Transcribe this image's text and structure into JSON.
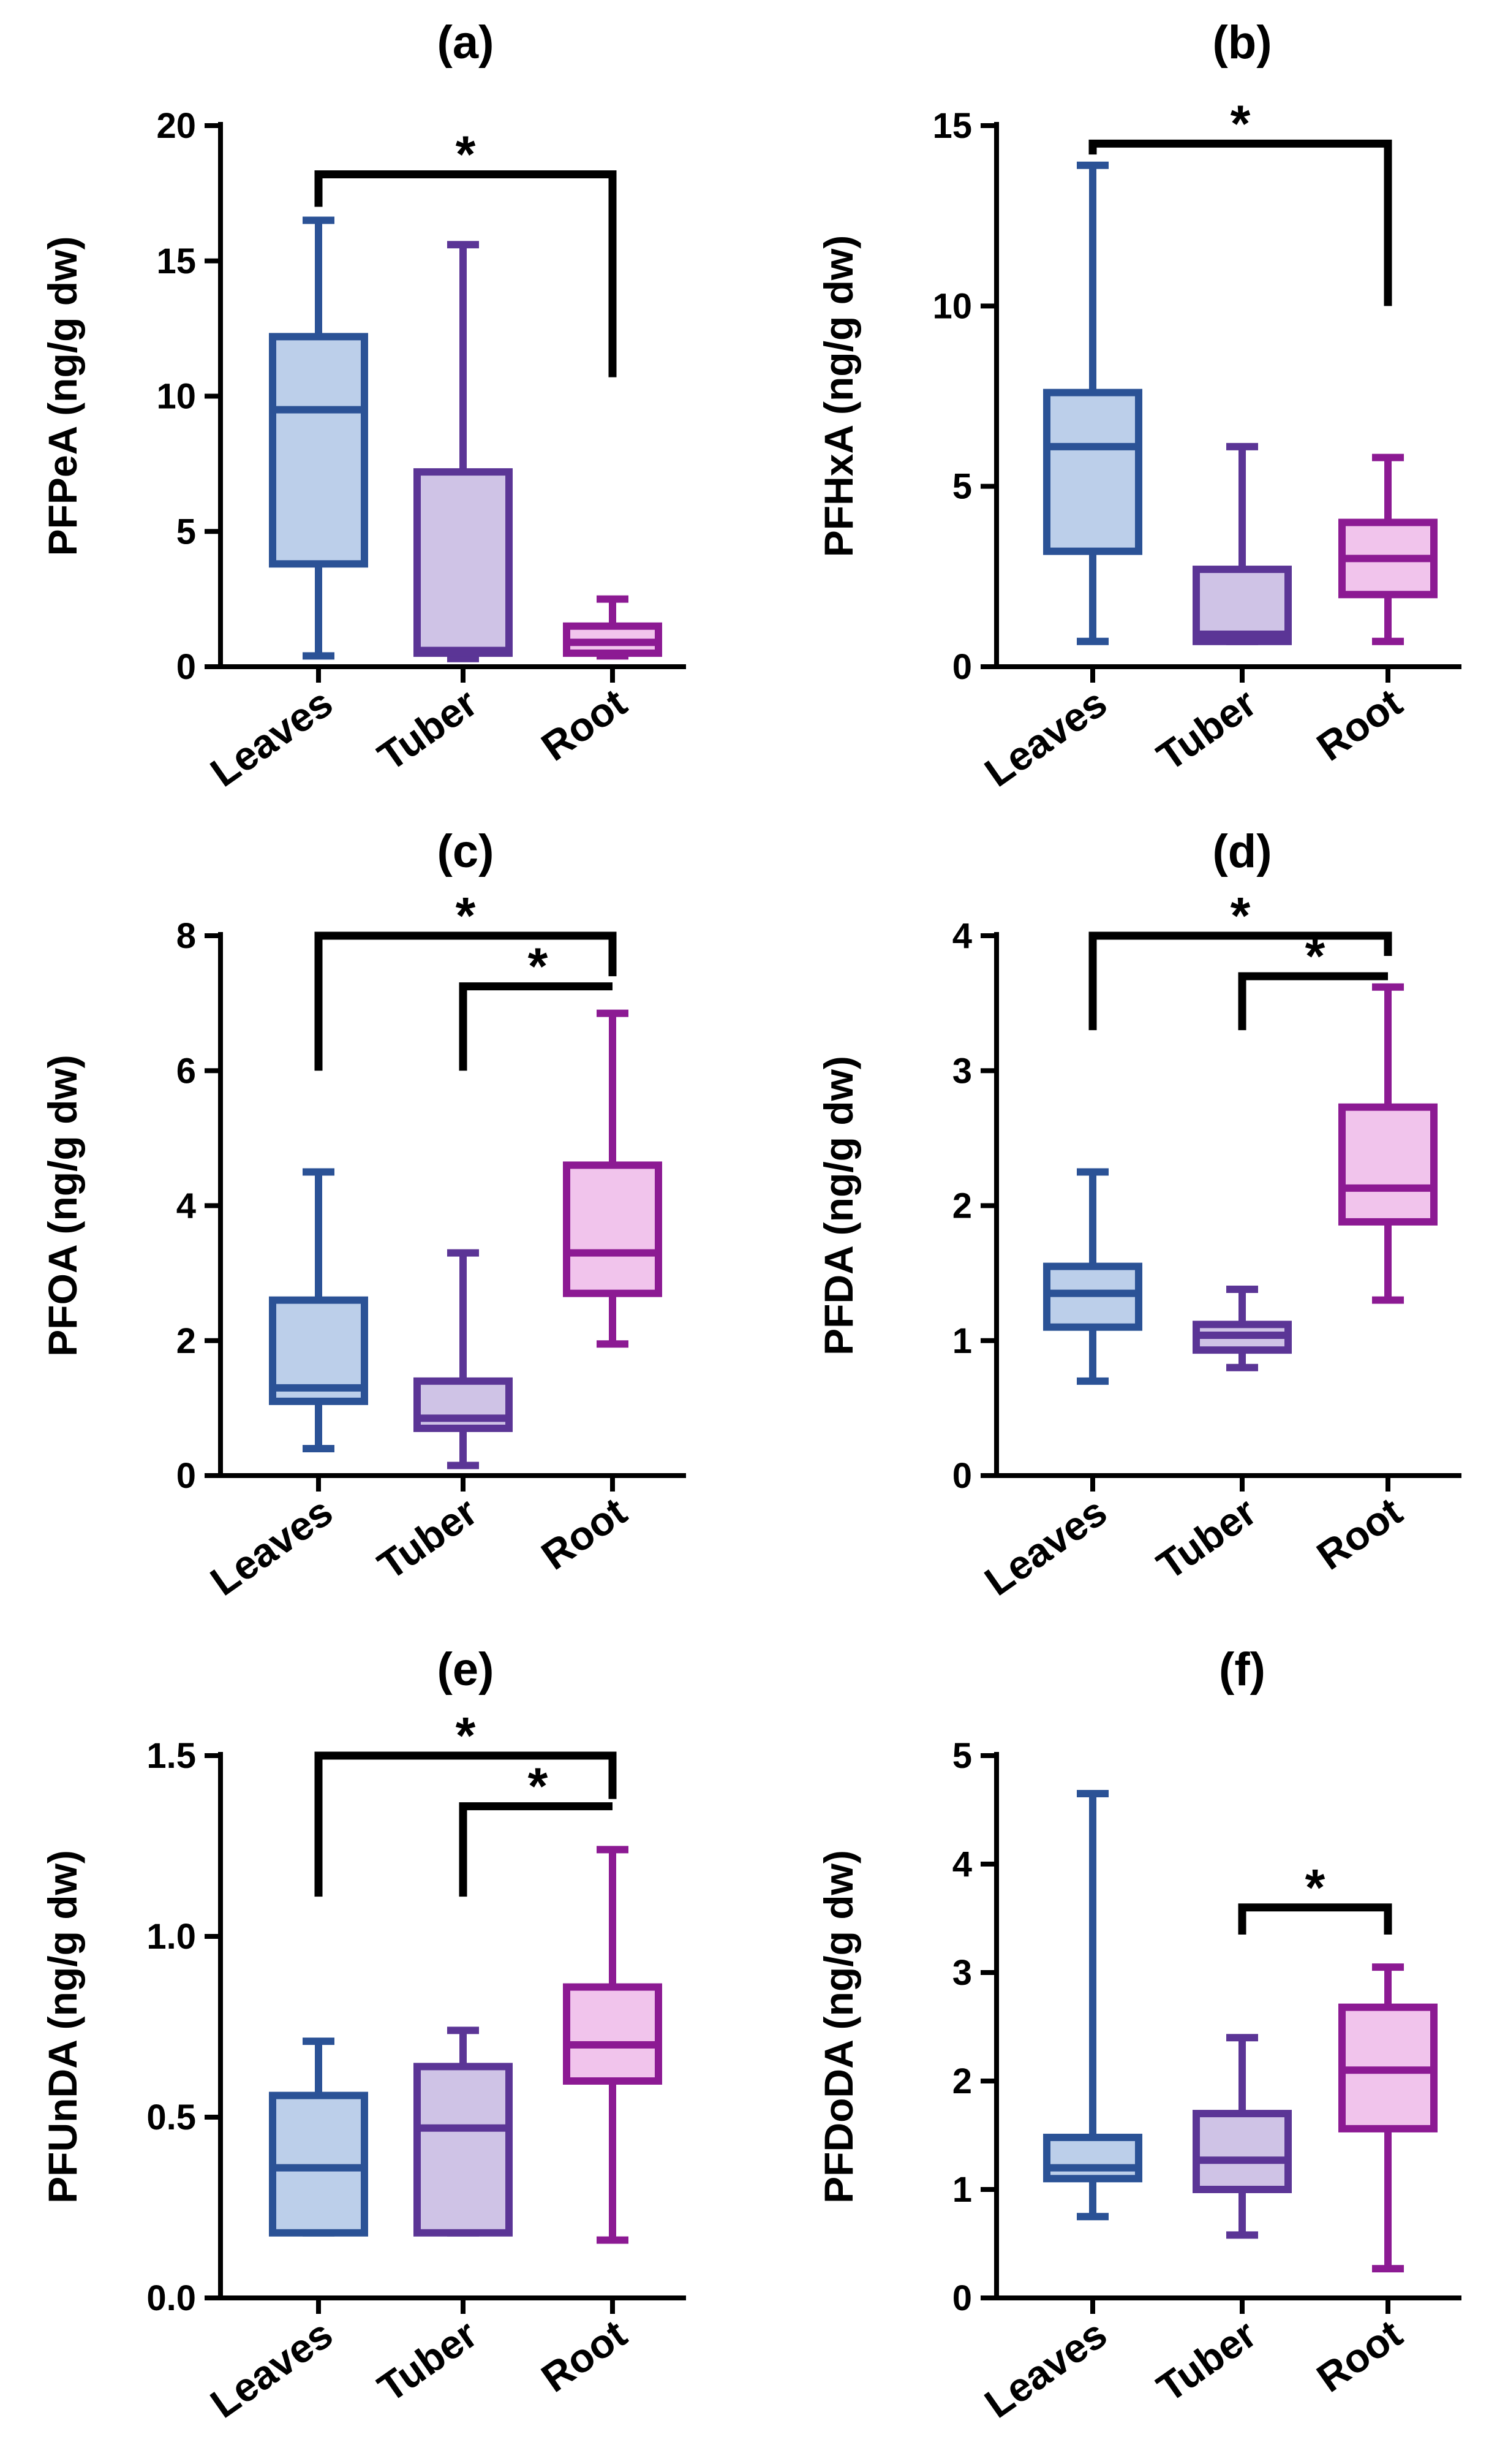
{
  "chart_data": [
    {
      "type": "box",
      "title": "(a)",
      "ylabel": "PFPeA (ng/g dw)",
      "categories": [
        "Leaves",
        "Tuber",
        "Root"
      ],
      "ylim": [
        0,
        20
      ],
      "yticks": [
        0,
        5,
        10,
        15,
        20
      ],
      "boxes": [
        {
          "min": 0.4,
          "q1": 3.8,
          "median": 9.5,
          "q3": 12.2,
          "max": 16.5
        },
        {
          "min": 0.3,
          "q1": 0.5,
          "median": 0.6,
          "q3": 7.2,
          "max": 15.6
        },
        {
          "min": 0.4,
          "q1": 0.5,
          "median": 0.9,
          "q3": 1.5,
          "max": 2.5
        }
      ],
      "significance": [
        {
          "from": 0,
          "to": 2,
          "label": "*",
          "level": 18.2,
          "left_end": 17.0,
          "right_end": 10.7
        }
      ]
    },
    {
      "type": "box",
      "title": "(b)",
      "ylabel": "PFHxA (ng/g dw)",
      "categories": [
        "Leaves",
        "Tuber",
        "Root"
      ],
      "ylim": [
        0,
        15
      ],
      "yticks": [
        0,
        5,
        10,
        15
      ],
      "boxes": [
        {
          "min": 0.7,
          "q1": 3.2,
          "median": 6.1,
          "q3": 7.6,
          "max": 13.9
        },
        {
          "min": 0.7,
          "q1": 0.7,
          "median": 0.9,
          "q3": 2.7,
          "max": 6.1
        },
        {
          "min": 0.7,
          "q1": 2.0,
          "median": 3.0,
          "q3": 4.0,
          "max": 5.8
        }
      ],
      "significance": [
        {
          "from": 0,
          "to": 2,
          "label": "*",
          "level": 14.5,
          "left_end": 14.2,
          "right_end": 10.0
        }
      ]
    },
    {
      "type": "box",
      "title": "(c)",
      "ylabel": "PFOA (ng/g dw)",
      "categories": [
        "Leaves",
        "Tuber",
        "Root"
      ],
      "ylim": [
        0,
        8
      ],
      "yticks": [
        0,
        2,
        4,
        6,
        8
      ],
      "boxes": [
        {
          "min": 0.4,
          "q1": 1.1,
          "median": 1.3,
          "q3": 2.6,
          "max": 4.5
        },
        {
          "min": 0.15,
          "q1": 0.7,
          "median": 0.85,
          "q3": 1.4,
          "max": 3.3
        },
        {
          "min": 1.95,
          "q1": 2.7,
          "median": 3.3,
          "q3": 4.6,
          "max": 6.85
        }
      ],
      "significance": [
        {
          "from": 0,
          "to": 2,
          "label": "*",
          "level": 8.0,
          "left_end": 6.0,
          "right_end": 7.4
        },
        {
          "from": 1,
          "to": 2,
          "label": "*",
          "level": 7.25,
          "left_end": 6.0,
          "right_end": 7.25
        }
      ]
    },
    {
      "type": "box",
      "title": "(d)",
      "ylabel": "PFDA  (ng/g dw)",
      "categories": [
        "Leaves",
        "Tuber",
        "Root"
      ],
      "ylim": [
        0,
        4
      ],
      "yticks": [
        0,
        1,
        2,
        3,
        4
      ],
      "boxes": [
        {
          "min": 0.7,
          "q1": 1.1,
          "median": 1.35,
          "q3": 1.55,
          "max": 2.25
        },
        {
          "min": 0.8,
          "q1": 0.93,
          "median": 1.04,
          "q3": 1.12,
          "max": 1.38
        },
        {
          "min": 1.3,
          "q1": 1.88,
          "median": 2.13,
          "q3": 2.73,
          "max": 3.62
        }
      ],
      "significance": [
        {
          "from": 0,
          "to": 2,
          "label": "*",
          "level": 4.0,
          "left_end": 3.3,
          "right_end": 3.85
        },
        {
          "from": 1,
          "to": 2,
          "label": "*",
          "level": 3.7,
          "left_end": 3.3,
          "right_end": 3.7
        }
      ]
    },
    {
      "type": "box",
      "title": "(e)",
      "ylabel": "PFUnDA  (ng/g dw)",
      "categories": [
        "Leaves",
        "Tuber",
        "Root"
      ],
      "ylim": [
        0,
        1.5
      ],
      "yticks": [
        "0.0",
        "0.5",
        "1.0",
        "1.5"
      ],
      "boxes": [
        {
          "min": 0.18,
          "q1": 0.18,
          "median": 0.36,
          "q3": 0.56,
          "max": 0.71
        },
        {
          "min": 0.18,
          "q1": 0.18,
          "median": 0.47,
          "q3": 0.64,
          "max": 0.74
        },
        {
          "min": 0.16,
          "q1": 0.6,
          "median": 0.7,
          "q3": 0.86,
          "max": 1.24
        }
      ],
      "significance": [
        {
          "from": 0,
          "to": 2,
          "label": "*",
          "level": 1.5,
          "left_end": 1.11,
          "right_end": 1.38
        },
        {
          "from": 1,
          "to": 2,
          "label": "*",
          "level": 1.36,
          "left_end": 1.11,
          "right_end": 1.36
        }
      ]
    },
    {
      "type": "box",
      "title": "(f)",
      "ylabel": "PFDoDA (ng/g dw)",
      "categories": [
        "Leaves",
        "Tuber",
        "Root"
      ],
      "ylim": [
        0,
        5
      ],
      "yticks": [
        0,
        1,
        2,
        3,
        4,
        5
      ],
      "boxes": [
        {
          "min": 0.75,
          "q1": 1.1,
          "median": 1.2,
          "q3": 1.48,
          "max": 4.65
        },
        {
          "min": 0.58,
          "q1": 1.0,
          "median": 1.27,
          "q3": 1.7,
          "max": 2.4
        },
        {
          "min": 0.27,
          "q1": 1.56,
          "median": 2.1,
          "q3": 2.68,
          "max": 3.05
        }
      ],
      "significance": [
        {
          "from": 1,
          "to": 2,
          "label": "*",
          "level": 3.6,
          "left_end": 3.35,
          "right_end": 3.35
        }
      ]
    }
  ],
  "colors": {
    "series_stroke": [
      "#2b5296",
      "#5b3596",
      "#8c1a93"
    ],
    "series_fill": [
      "#bccfea",
      "#cfc3e6",
      "#f1c4ec"
    ],
    "axis": "#000000"
  }
}
